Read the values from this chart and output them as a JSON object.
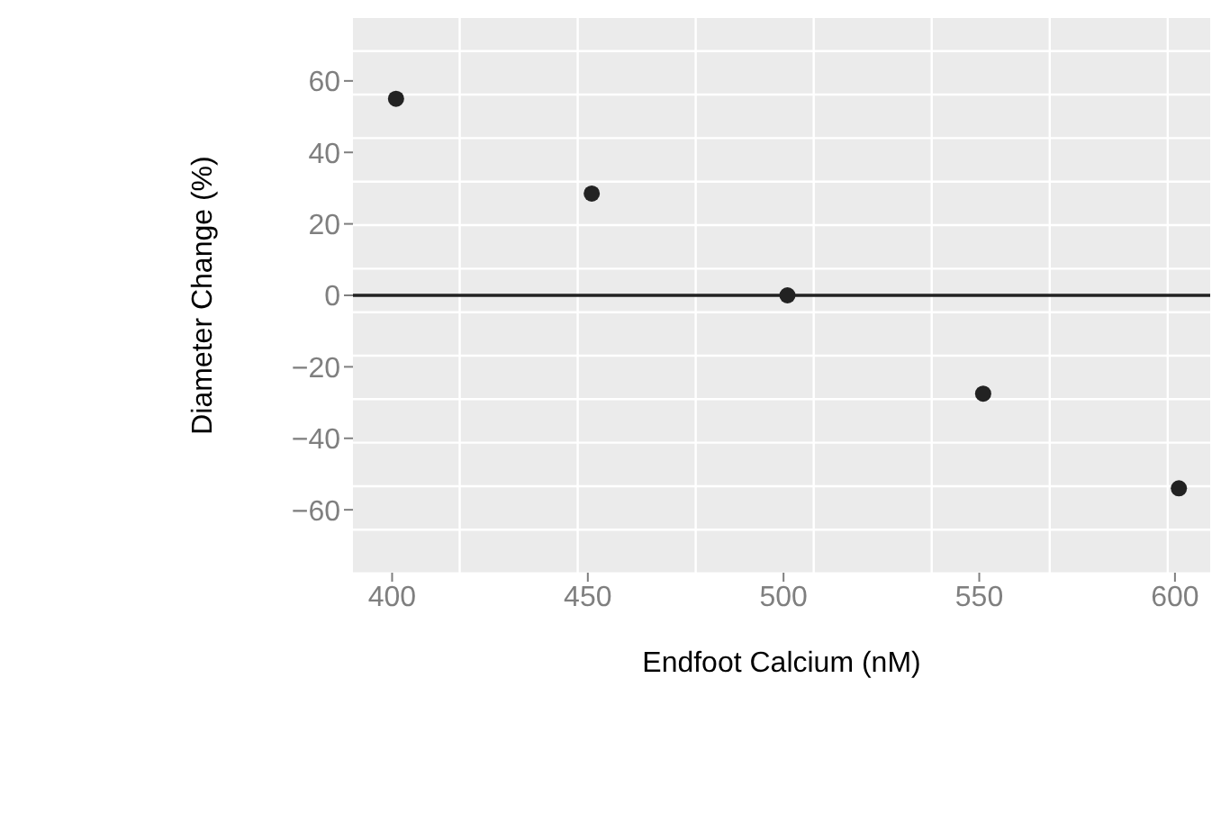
{
  "chart_data": {
    "type": "scatter",
    "xlabel": "Endfoot Calcium (nM)",
    "ylabel": "Diameter Change (%)",
    "x": [
      401,
      451,
      501,
      551,
      601
    ],
    "values": [
      55,
      28.5,
      0,
      -27.5,
      -54
    ],
    "color": "#222222",
    "marker": "circle",
    "xlim": [
      390,
      609
    ],
    "xticks": [
      400,
      450,
      500,
      550,
      600
    ],
    "ylim": [
      -77.6,
      77.6
    ],
    "yticks": [
      -60,
      -40,
      -20,
      0,
      20,
      40,
      60
    ],
    "ref_lines": [
      {
        "axis": "y",
        "value": 0,
        "color": "#222222"
      }
    ],
    "grid": true
  }
}
